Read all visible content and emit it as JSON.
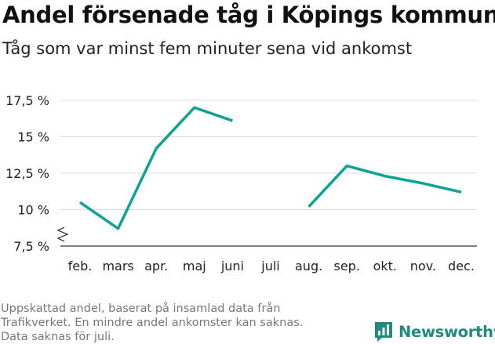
{
  "title": "Andel försenade tåg i Köpings kommun",
  "subtitle": "Tåg som var minst fem minuter sena vid ankomst",
  "footnote": [
    "Uppskattad andel, baserat på insamlad data från",
    "Trafikverket. En mindre andel ankomster kan saknas.",
    "Data saknas för juli."
  ],
  "logo": {
    "text": "Newsworthy",
    "icon": "newsworthy-chart-logo-icon",
    "color": "#1e8b7e"
  },
  "chart_data": {
    "type": "line",
    "categories": [
      "feb.",
      "mars",
      "apr.",
      "maj",
      "juni",
      "juli",
      "aug.",
      "sep.",
      "okt.",
      "nov.",
      "dec."
    ],
    "series": [
      {
        "values": [
          10.5,
          8.7,
          14.2,
          17.0,
          16.1,
          null,
          10.2,
          13.0,
          12.3,
          11.8,
          11.2
        ],
        "color": "#0fa294"
      }
    ],
    "yticks": [
      7.5,
      10,
      12.5,
      15,
      17.5
    ],
    "ytick_labels": [
      "7,5 %",
      "10 %",
      "12,5 %",
      "15 %",
      "17,5 %"
    ],
    "ylim": [
      7.5,
      17.5
    ],
    "axis_break": true,
    "grid": true,
    "xlabel": "",
    "ylabel": ""
  }
}
